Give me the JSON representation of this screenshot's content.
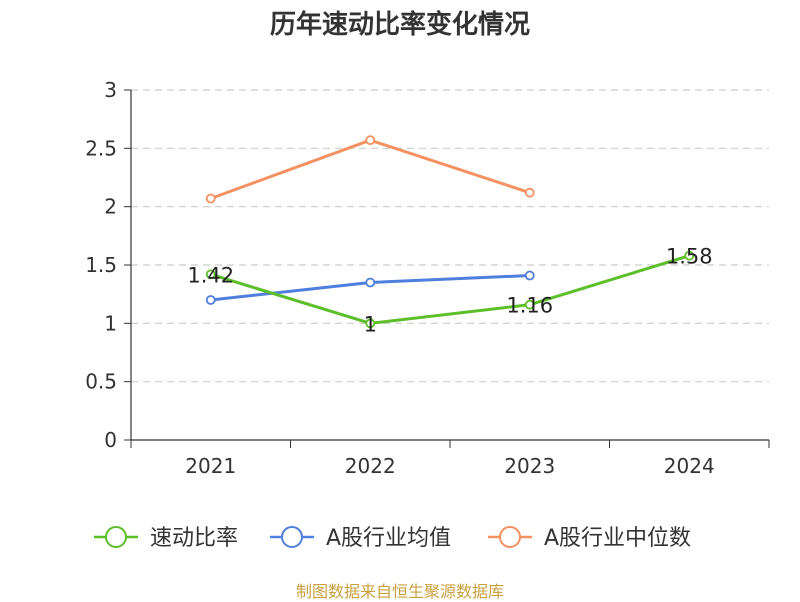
{
  "title": "历年速动比率变化情况",
  "source": "制图数据来自恒生聚源数据库",
  "chart_data": {
    "type": "line",
    "categories": [
      "2021",
      "2022",
      "2023",
      "2024"
    ],
    "ylim": [
      0,
      3
    ],
    "yticks": [
      "0",
      "0.5",
      "1",
      "1.5",
      "2",
      "2.5",
      "3"
    ],
    "grid": true,
    "legend_position": "bottom",
    "series": [
      {
        "name": "速动比率",
        "values": [
          1.42,
          1.0,
          1.16,
          1.58
        ],
        "labels": [
          "1.42",
          "1",
          "1.16",
          "1.58"
        ],
        "color": "#5cbf2a"
      },
      {
        "name": "A股行业均值",
        "values": [
          1.2,
          1.35,
          1.41,
          null
        ],
        "color": "#4e7fdc"
      },
      {
        "name": "A股行业中位数",
        "values": [
          2.07,
          2.57,
          2.12,
          null
        ],
        "color": "#f49160"
      }
    ]
  }
}
